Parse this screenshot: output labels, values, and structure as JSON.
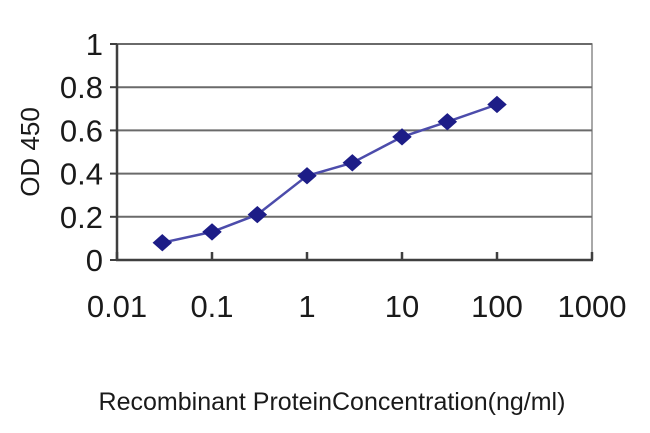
{
  "figure": {
    "background": "#ffffff"
  },
  "chart_data": {
    "type": "line",
    "title": "",
    "xlabel": "Recombinant ProteinConcentration(ng/ml)",
    "ylabel": "OD 450",
    "x_scale": "log",
    "xlim": [
      0.01,
      1000
    ],
    "ylim": [
      0,
      1
    ],
    "x_tick_labels": [
      "0.01",
      "0.1",
      "1",
      "10",
      "100",
      "1000"
    ],
    "x_tick_values": [
      0.01,
      0.1,
      1,
      10,
      100,
      1000
    ],
    "y_tick_labels": [
      "0",
      "0.2",
      "0.4",
      "0.6",
      "0.8",
      "1"
    ],
    "y_tick_values": [
      0,
      0.2,
      0.4,
      0.6,
      0.8,
      1
    ],
    "grid": "horizontal-only",
    "legend": "none",
    "marker": "diamond",
    "series": [
      {
        "x": [
          0.03,
          0.1,
          0.3,
          1,
          3,
          10,
          30,
          100
        ],
        "y": [
          0.08,
          0.13,
          0.21,
          0.39,
          0.45,
          0.57,
          0.64,
          0.72
        ]
      }
    ],
    "colors": {
      "line": "#4c4cab",
      "marker": "#1d1d87",
      "gridline": "#6a6a6a",
      "plot_border": "#8c8c8c",
      "axis": "#3f3f3f",
      "tick_text": "#1a1a1a",
      "plot_background": "#ffffff"
    }
  }
}
